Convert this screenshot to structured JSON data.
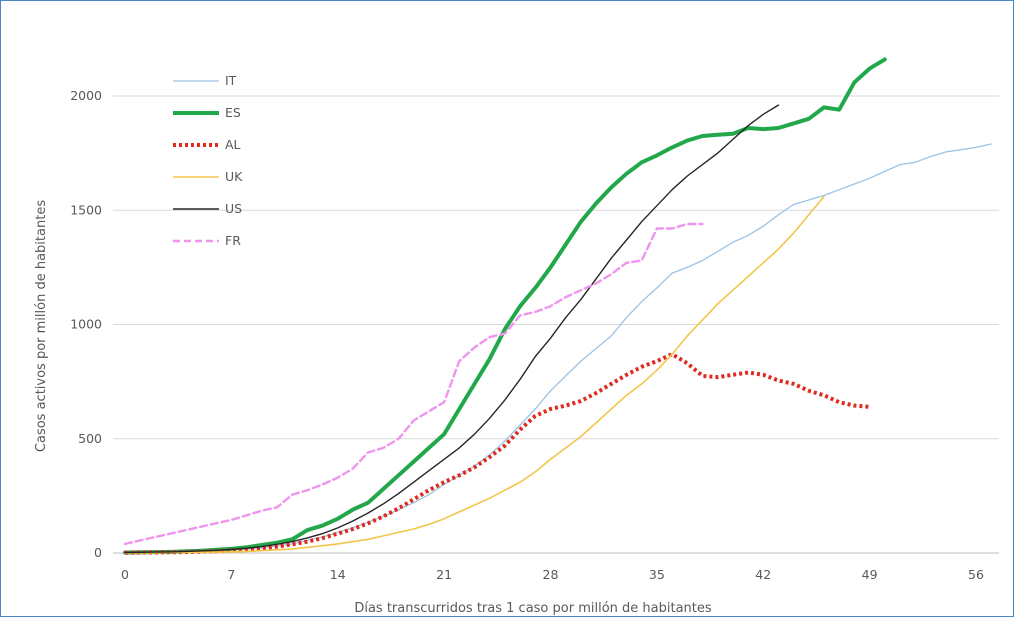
{
  "chart_data": {
    "type": "line",
    "title": "",
    "xlabel": "Días transcurridos tras 1 caso por millón de habitantes",
    "ylabel": "Casos activos por millón de habitantes",
    "xlim": [
      0,
      57
    ],
    "ylim": [
      0,
      2200
    ],
    "xticks": [
      0,
      7,
      14,
      21,
      28,
      35,
      42,
      49,
      56
    ],
    "yticks": [
      0,
      500,
      1000,
      1500,
      2000
    ],
    "grid": "horizontal",
    "legend_position": "top-left",
    "series": [
      {
        "name": "IT",
        "color": "#9dc3e6",
        "style": "solid",
        "width": 1.3,
        "x": [
          0,
          1,
          2,
          3,
          4,
          5,
          6,
          7,
          8,
          9,
          10,
          11,
          12,
          13,
          14,
          15,
          16,
          17,
          18,
          19,
          20,
          21,
          22,
          23,
          24,
          25,
          26,
          27,
          28,
          29,
          30,
          31,
          32,
          33,
          34,
          35,
          36,
          37,
          38,
          39,
          40,
          41,
          42,
          43,
          44,
          45,
          46,
          47,
          48,
          49,
          50,
          51,
          52,
          53,
          54,
          55,
          56,
          57
        ],
        "y": [
          2,
          3,
          4,
          5,
          6,
          8,
          10,
          13,
          17,
          22,
          30,
          40,
          55,
          70,
          90,
          110,
          135,
          160,
          190,
          220,
          255,
          300,
          340,
          380,
          430,
          490,
          560,
          630,
          710,
          775,
          840,
          895,
          950,
          1030,
          1100,
          1160,
          1225,
          1250,
          1280,
          1320,
          1360,
          1390,
          1430,
          1480,
          1525,
          1545,
          1565,
          1590,
          1615,
          1640,
          1670,
          1700,
          1710,
          1735,
          1755,
          1765,
          1775,
          1790
        ]
      },
      {
        "name": "ES",
        "color": "#22a84a",
        "style": "solid",
        "width": 4,
        "x": [
          0,
          1,
          2,
          3,
          4,
          5,
          6,
          7,
          8,
          9,
          10,
          11,
          12,
          13,
          14,
          15,
          16,
          17,
          18,
          19,
          20,
          21,
          22,
          23,
          24,
          25,
          26,
          27,
          28,
          29,
          30,
          31,
          32,
          33,
          34,
          35,
          36,
          37,
          38,
          39,
          40,
          41,
          42,
          43,
          44,
          45,
          46,
          47,
          48,
          49,
          50
        ],
        "y": [
          2,
          3,
          4,
          5,
          7,
          10,
          14,
          18,
          25,
          35,
          45,
          60,
          100,
          120,
          150,
          190,
          220,
          280,
          340,
          400,
          460,
          520,
          630,
          740,
          850,
          980,
          1080,
          1160,
          1250,
          1350,
          1450,
          1530,
          1600,
          1660,
          1710,
          1740,
          1775,
          1805,
          1825,
          1830,
          1835,
          1860,
          1855,
          1860,
          1880,
          1900,
          1950,
          1940,
          2060,
          2120,
          2160
        ]
      },
      {
        "name": "AL",
        "color": "#e02a1e",
        "style": "dotted",
        "width": 4,
        "x": [
          0,
          1,
          2,
          3,
          4,
          5,
          6,
          7,
          8,
          9,
          10,
          11,
          12,
          13,
          14,
          15,
          16,
          17,
          18,
          19,
          20,
          21,
          22,
          23,
          24,
          25,
          26,
          27,
          28,
          29,
          30,
          31,
          32,
          33,
          34,
          35,
          36,
          37,
          38,
          39,
          40,
          41,
          42,
          43,
          44,
          45,
          46,
          47,
          48,
          49
        ],
        "y": [
          1,
          2,
          2,
          3,
          4,
          6,
          8,
          11,
          15,
          20,
          28,
          38,
          50,
          65,
          85,
          105,
          130,
          160,
          195,
          235,
          275,
          310,
          340,
          375,
          420,
          470,
          540,
          600,
          630,
          645,
          665,
          700,
          740,
          780,
          815,
          840,
          870,
          830,
          775,
          770,
          780,
          790,
          780,
          755,
          740,
          710,
          690,
          660,
          645,
          640
        ]
      },
      {
        "name": "UK",
        "color": "#f3c54a",
        "style": "solid",
        "width": 1.6,
        "x": [
          0,
          1,
          2,
          3,
          4,
          5,
          6,
          7,
          8,
          9,
          10,
          11,
          12,
          13,
          14,
          15,
          16,
          17,
          18,
          19,
          20,
          21,
          22,
          23,
          24,
          25,
          26,
          27,
          28,
          29,
          30,
          31,
          32,
          33,
          34,
          35,
          36,
          37,
          38,
          39,
          40,
          41,
          42,
          43,
          44,
          45,
          46
        ],
        "y": [
          1,
          1,
          1,
          2,
          2,
          3,
          4,
          5,
          7,
          10,
          14,
          18,
          25,
          32,
          40,
          50,
          60,
          75,
          90,
          105,
          125,
          150,
          180,
          210,
          240,
          275,
          310,
          355,
          410,
          460,
          510,
          570,
          630,
          690,
          740,
          800,
          870,
          950,
          1020,
          1090,
          1150,
          1210,
          1270,
          1330,
          1400,
          1480,
          1560
        ]
      },
      {
        "name": "US",
        "color": "#262626",
        "style": "solid",
        "width": 1.4,
        "x": [
          0,
          1,
          2,
          3,
          4,
          5,
          6,
          7,
          8,
          9,
          10,
          11,
          12,
          13,
          14,
          15,
          16,
          17,
          18,
          19,
          20,
          21,
          22,
          23,
          24,
          25,
          26,
          27,
          28,
          29,
          30,
          31,
          32,
          33,
          34,
          35,
          36,
          37,
          38,
          39,
          40,
          41,
          42,
          43
        ],
        "y": [
          2,
          3,
          4,
          5,
          7,
          9,
          12,
          16,
          21,
          28,
          38,
          50,
          66,
          85,
          110,
          140,
          175,
          215,
          260,
          310,
          360,
          410,
          460,
          520,
          590,
          670,
          760,
          860,
          940,
          1030,
          1110,
          1200,
          1290,
          1370,
          1450,
          1520,
          1590,
          1650,
          1700,
          1750,
          1810,
          1870,
          1920,
          1960
        ]
      },
      {
        "name": "FR",
        "color": "#ee95ee",
        "style": "dashed",
        "width": 2.4,
        "x": [
          0,
          1,
          2,
          3,
          4,
          5,
          6,
          7,
          8,
          9,
          10,
          11,
          12,
          13,
          14,
          15,
          16,
          17,
          18,
          19,
          20,
          21,
          22,
          23,
          24,
          25,
          26,
          27,
          28,
          29,
          30,
          31,
          32,
          33,
          34,
          35,
          36,
          37,
          38
        ],
        "y": [
          40,
          55,
          70,
          85,
          100,
          115,
          130,
          145,
          165,
          185,
          200,
          255,
          275,
          300,
          330,
          370,
          440,
          460,
          500,
          580,
          620,
          660,
          840,
          900,
          945,
          960,
          1040,
          1055,
          1080,
          1120,
          1150,
          1180,
          1220,
          1270,
          1280,
          1420,
          1420,
          1440,
          1440
        ]
      }
    ]
  }
}
